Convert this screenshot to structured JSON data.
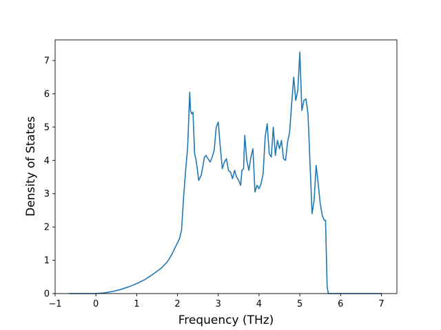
{
  "chart_data": {
    "type": "line",
    "title": "",
    "xlabel": "Frequency (THz)",
    "ylabel": "Density of States",
    "xlim": [
      -1,
      7.38
    ],
    "ylim": [
      0,
      7.62
    ],
    "xticks": [
      -1,
      0,
      1,
      2,
      3,
      4,
      5,
      6,
      7
    ],
    "yticks": [
      0,
      1,
      2,
      3,
      4,
      5,
      6,
      7
    ],
    "grid": false,
    "legend": "none",
    "colors": {
      "line": "#1f77b4",
      "axes": "#000000",
      "background": "#ffffff"
    },
    "series": [
      {
        "name": "",
        "x": [
          -0.65,
          -0.3,
          0.0,
          0.2,
          0.4,
          0.6,
          0.8,
          1.0,
          1.2,
          1.4,
          1.6,
          1.75,
          1.85,
          1.95,
          2.05,
          2.1,
          2.15,
          2.2,
          2.25,
          2.3,
          2.32,
          2.35,
          2.38,
          2.42,
          2.45,
          2.48,
          2.52,
          2.58,
          2.62,
          2.66,
          2.7,
          2.75,
          2.8,
          2.85,
          2.9,
          2.95,
          3.0,
          3.05,
          3.1,
          3.15,
          3.2,
          3.25,
          3.3,
          3.35,
          3.4,
          3.45,
          3.5,
          3.55,
          3.58,
          3.62,
          3.65,
          3.7,
          3.75,
          3.8,
          3.85,
          3.9,
          3.95,
          4.0,
          4.05,
          4.1,
          4.15,
          4.2,
          4.25,
          4.3,
          4.35,
          4.4,
          4.45,
          4.5,
          4.55,
          4.6,
          4.65,
          4.7,
          4.75,
          4.8,
          4.85,
          4.9,
          4.95,
          5.0,
          5.05,
          5.1,
          5.15,
          5.2,
          5.25,
          5.3,
          5.35,
          5.4,
          5.45,
          5.5,
          5.55,
          5.6,
          5.63,
          5.67,
          5.7,
          5.75,
          5.8,
          5.85,
          5.9,
          5.95,
          6.0,
          6.03,
          6.06,
          6.1,
          6.15,
          6.2,
          6.25,
          6.3,
          6.33,
          6.36,
          6.4,
          6.45,
          6.55,
          6.7,
          7.0
        ],
        "values": [
          0.0,
          0.0,
          0.0,
          0.02,
          0.06,
          0.12,
          0.2,
          0.3,
          0.42,
          0.58,
          0.76,
          0.95,
          1.15,
          1.4,
          1.65,
          1.9,
          2.9,
          3.7,
          4.4,
          6.05,
          5.5,
          5.4,
          5.45,
          4.2,
          4.05,
          3.8,
          3.4,
          3.55,
          3.8,
          4.1,
          4.15,
          4.05,
          3.95,
          4.1,
          4.3,
          5.0,
          5.15,
          4.4,
          3.75,
          3.95,
          4.05,
          3.7,
          3.65,
          3.45,
          3.7,
          3.5,
          3.4,
          3.25,
          3.7,
          3.75,
          4.75,
          4.0,
          3.7,
          4.1,
          4.35,
          3.05,
          3.25,
          3.15,
          3.3,
          3.6,
          4.7,
          5.1,
          4.2,
          4.1,
          5.0,
          4.15,
          4.6,
          4.35,
          4.6,
          4.05,
          4.0,
          4.55,
          4.85,
          5.7,
          6.5,
          5.8,
          6.1,
          7.25,
          5.5,
          5.8,
          5.85,
          5.4,
          3.9,
          2.4,
          2.8,
          3.85,
          3.3,
          2.7,
          2.35,
          2.2,
          2.2,
          0.2,
          0.0,
          0.0,
          0.0,
          0.0,
          0.0,
          0.0,
          0.0,
          0.0,
          0.0,
          0.0,
          0.0,
          0.0,
          0.0,
          0.0,
          0.0,
          0.0,
          0.0,
          0.0,
          0.0,
          0.0,
          0.0
        ]
      }
    ]
  }
}
